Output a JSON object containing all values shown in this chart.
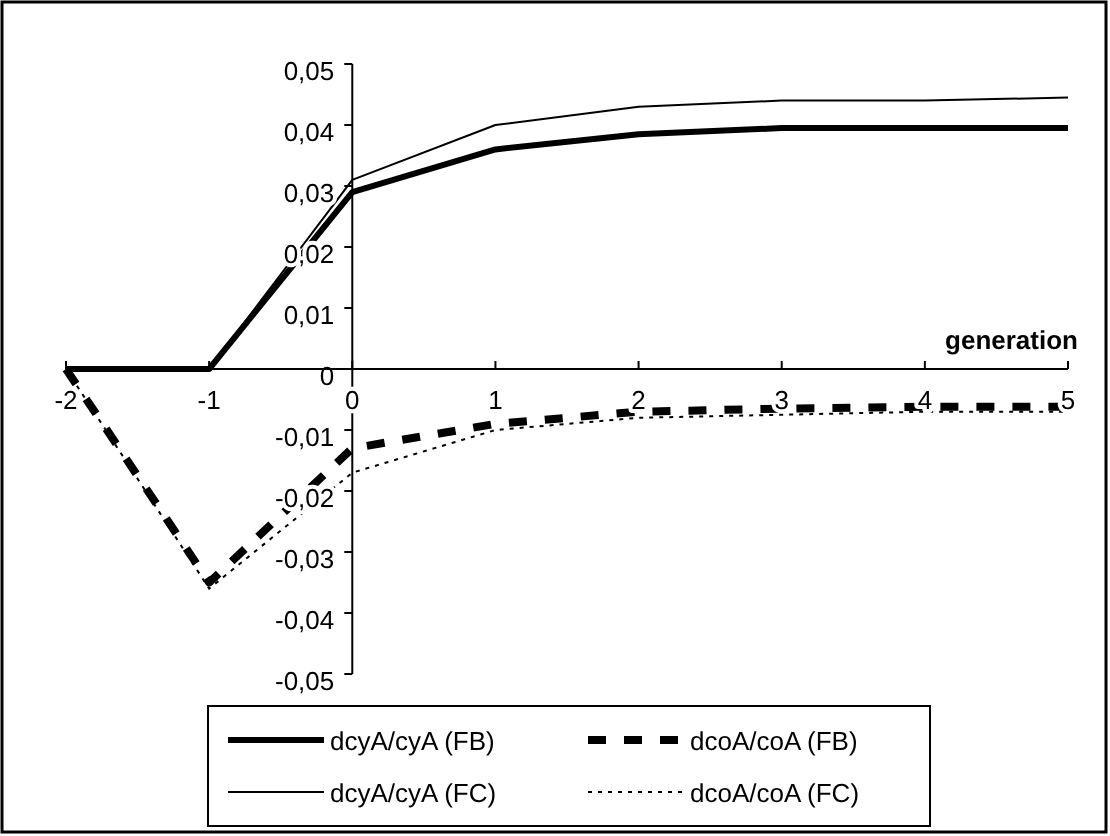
{
  "chart_data": {
    "type": "line",
    "xlabel": "generation",
    "x": [
      -2,
      -1,
      0,
      1,
      2,
      3,
      4,
      5
    ],
    "series": [
      {
        "name": "dcyA/cyA (FB)",
        "color": "#000000",
        "line_style": "solid",
        "values": [
          0,
          0,
          0.029,
          0.036,
          0.0385,
          0.0395,
          0.0395,
          0.0395
        ]
      },
      {
        "name": "dcoA/coA (FB)",
        "color": "#000000",
        "line_style": "dashed",
        "values": [
          0,
          -0.035,
          -0.013,
          -0.009,
          -0.007,
          -0.0065,
          -0.0062,
          -0.0062
        ]
      },
      {
        "name": "dcyA/cyA (FC)",
        "color": "#000000",
        "line_style": "solid",
        "values": [
          0,
          0,
          0.031,
          0.04,
          0.043,
          0.044,
          0.044,
          0.0445
        ]
      },
      {
        "name": "dcoA/coA (FC)",
        "color": "#000000",
        "line_style": "dotted",
        "values": [
          0,
          -0.036,
          -0.017,
          -0.01,
          -0.008,
          -0.0075,
          -0.007,
          -0.007
        ]
      }
    ],
    "xlim": [
      -2,
      5
    ],
    "xticks": [
      -2,
      -1,
      0,
      1,
      2,
      3,
      4,
      5
    ],
    "ylim": [
      -0.05,
      0.05
    ],
    "yticks": [
      {
        "value": -0.05,
        "label": "-0,05"
      },
      {
        "value": -0.04,
        "label": "-0,04"
      },
      {
        "value": -0.03,
        "label": "-0,03"
      },
      {
        "value": -0.02,
        "label": "-0,02"
      },
      {
        "value": -0.01,
        "label": "-0,01"
      },
      0,
      {
        "value": 0.01,
        "label": "0,01"
      },
      {
        "value": 0.02,
        "label": "0,02"
      },
      {
        "value": 0.03,
        "label": "0,03"
      },
      {
        "value": 0.04,
        "label": "0,04"
      },
      {
        "value": 0.05,
        "label": "0,05"
      }
    ],
    "grid": false,
    "legend": "bottom",
    "marker": "none"
  }
}
